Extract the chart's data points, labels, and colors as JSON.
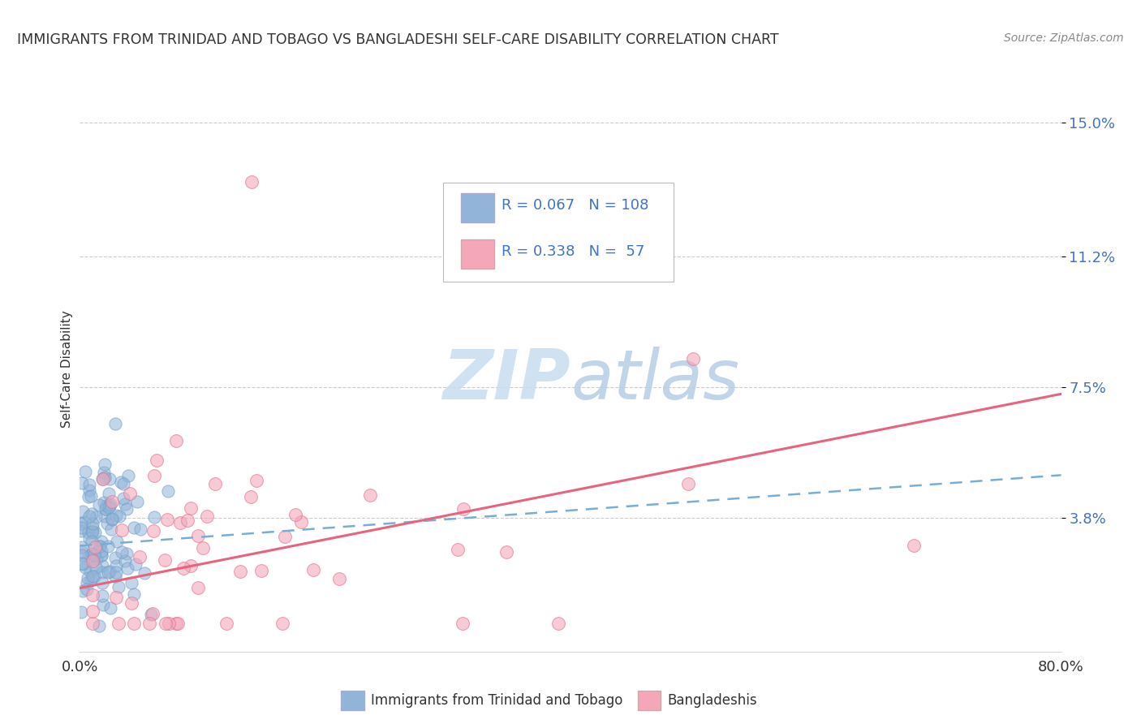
{
  "title": "IMMIGRANTS FROM TRINIDAD AND TOBAGO VS BANGLADESHI SELF-CARE DISABILITY CORRELATION CHART",
  "source": "Source: ZipAtlas.com",
  "ylabel": "Self-Care Disability",
  "y_tick_vals": [
    0.038,
    0.075,
    0.112,
    0.15
  ],
  "y_tick_labels": [
    "3.8%",
    "7.5%",
    "11.2%",
    "15.0%"
  ],
  "x_min": 0.0,
  "x_max": 0.8,
  "y_min": 0.0,
  "y_max": 0.16,
  "legend_label1": "Immigrants from Trinidad and Tobago",
  "legend_label2": "Bangladeshis",
  "R1": 0.067,
  "N1": 108,
  "R2": 0.338,
  "N2": 57,
  "color_blue": "#92b4d8",
  "color_pink": "#f4a7b9",
  "color_blue_line": "#7aadd4",
  "color_pink_line": "#e8637d",
  "watermark_color": "#dce9f5",
  "background_color": "#ffffff",
  "grid_color": "#cccccc",
  "text_blue": "#4472c4",
  "text_black": "#333333",
  "title_color": "#333333",
  "source_color": "#888888"
}
